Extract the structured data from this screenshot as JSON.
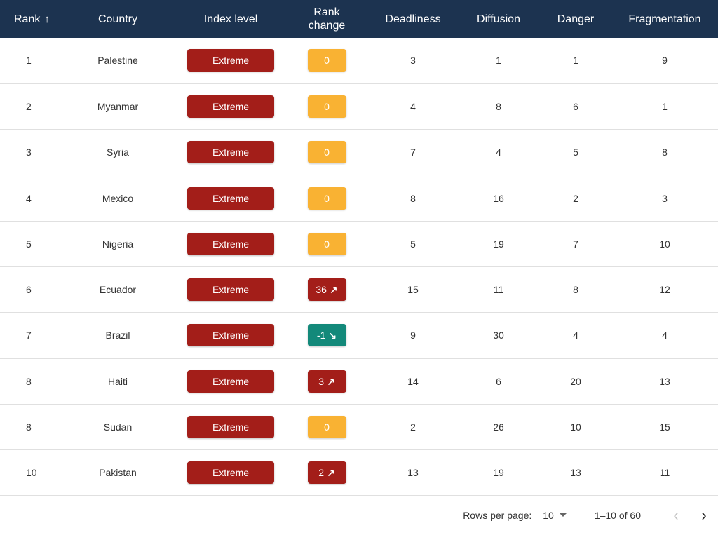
{
  "columns": {
    "rank": "Rank",
    "country": "Country",
    "index_level": "Index level",
    "rank_change_line1": "Rank",
    "rank_change_line2": "change",
    "deadliness": "Deadliness",
    "diffusion": "Diffusion",
    "danger": "Danger",
    "fragmentation": "Fragmentation"
  },
  "sort": {
    "column": "rank",
    "direction": "ascending",
    "icon": "arrow-up-icon"
  },
  "colors": {
    "header_bg": "#1c3350",
    "extreme": "#a31e19",
    "neutral": "#f9b233",
    "down": "#13897a"
  },
  "rows": [
    {
      "rank": "1",
      "country": "Palestine",
      "level": "Extreme",
      "change": "0",
      "trend": "neutral",
      "deadliness": "3",
      "diffusion": "1",
      "danger": "1",
      "fragmentation": "9"
    },
    {
      "rank": "2",
      "country": "Myanmar",
      "level": "Extreme",
      "change": "0",
      "trend": "neutral",
      "deadliness": "4",
      "diffusion": "8",
      "danger": "6",
      "fragmentation": "1"
    },
    {
      "rank": "3",
      "country": "Syria",
      "level": "Extreme",
      "change": "0",
      "trend": "neutral",
      "deadliness": "7",
      "diffusion": "4",
      "danger": "5",
      "fragmentation": "8"
    },
    {
      "rank": "4",
      "country": "Mexico",
      "level": "Extreme",
      "change": "0",
      "trend": "neutral",
      "deadliness": "8",
      "diffusion": "16",
      "danger": "2",
      "fragmentation": "3"
    },
    {
      "rank": "5",
      "country": "Nigeria",
      "level": "Extreme",
      "change": "0",
      "trend": "neutral",
      "deadliness": "5",
      "diffusion": "19",
      "danger": "7",
      "fragmentation": "10"
    },
    {
      "rank": "6",
      "country": "Ecuador",
      "level": "Extreme",
      "change": "36",
      "trend": "up",
      "deadliness": "15",
      "diffusion": "11",
      "danger": "8",
      "fragmentation": "12"
    },
    {
      "rank": "7",
      "country": "Brazil",
      "level": "Extreme",
      "change": "-1",
      "trend": "down",
      "deadliness": "9",
      "diffusion": "30",
      "danger": "4",
      "fragmentation": "4"
    },
    {
      "rank": "8",
      "country": "Haiti",
      "level": "Extreme",
      "change": "3",
      "trend": "up",
      "deadliness": "14",
      "diffusion": "6",
      "danger": "20",
      "fragmentation": "13"
    },
    {
      "rank": "8",
      "country": "Sudan",
      "level": "Extreme",
      "change": "0",
      "trend": "neutral",
      "deadliness": "2",
      "diffusion": "26",
      "danger": "10",
      "fragmentation": "15"
    },
    {
      "rank": "10",
      "country": "Pakistan",
      "level": "Extreme",
      "change": "2",
      "trend": "up",
      "deadliness": "13",
      "diffusion": "19",
      "danger": "13",
      "fragmentation": "11"
    }
  ],
  "pagination": {
    "rows_per_page_label": "Rows per page:",
    "rows_per_page_value": "10",
    "range_label": "1–10 of 60",
    "prev_icon": "chevron-left-icon",
    "next_icon": "chevron-right-icon"
  }
}
